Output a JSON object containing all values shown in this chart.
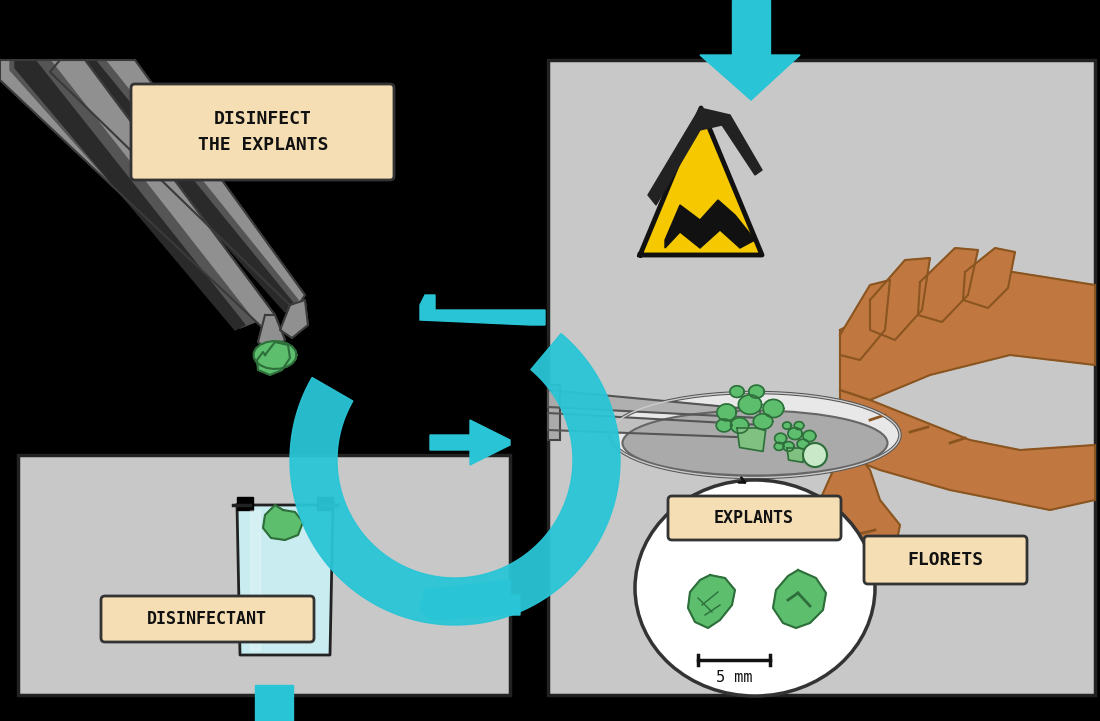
{
  "bg_color": "#000000",
  "right_panel_bg": "#c8c8c8",
  "label_bg": "#f5deb3",
  "green_color": "#5dbe6e",
  "green_dark": "#2d6e3a",
  "green_light": "#a0d8a0",
  "cyan_color": "#29c5d6",
  "cyan_dark": "#1a9baa",
  "glass_fill": "#c8ecf0",
  "glass_bg": "#d0d0d0",
  "hand_fill": "#c07840",
  "hand_dark": "#8a5520",
  "hand_nail": "#d4956a",
  "tweezers_fill": "#909090",
  "tweezers_dark": "#3a3a3a",
  "tweezers_mid": "#555555",
  "petri_outer": "#d8d8d8",
  "petri_inner": "#b0b0b0",
  "yellow_tri": "#f5c800",
  "label_disinfect": "DISINFECT\nTHE EXPLANTS",
  "label_disinfectant": "DISINFECTANT",
  "label_explants": "EXPLANTS",
  "label_florets": "FLORETS",
  "label_5mm": "5 mm"
}
